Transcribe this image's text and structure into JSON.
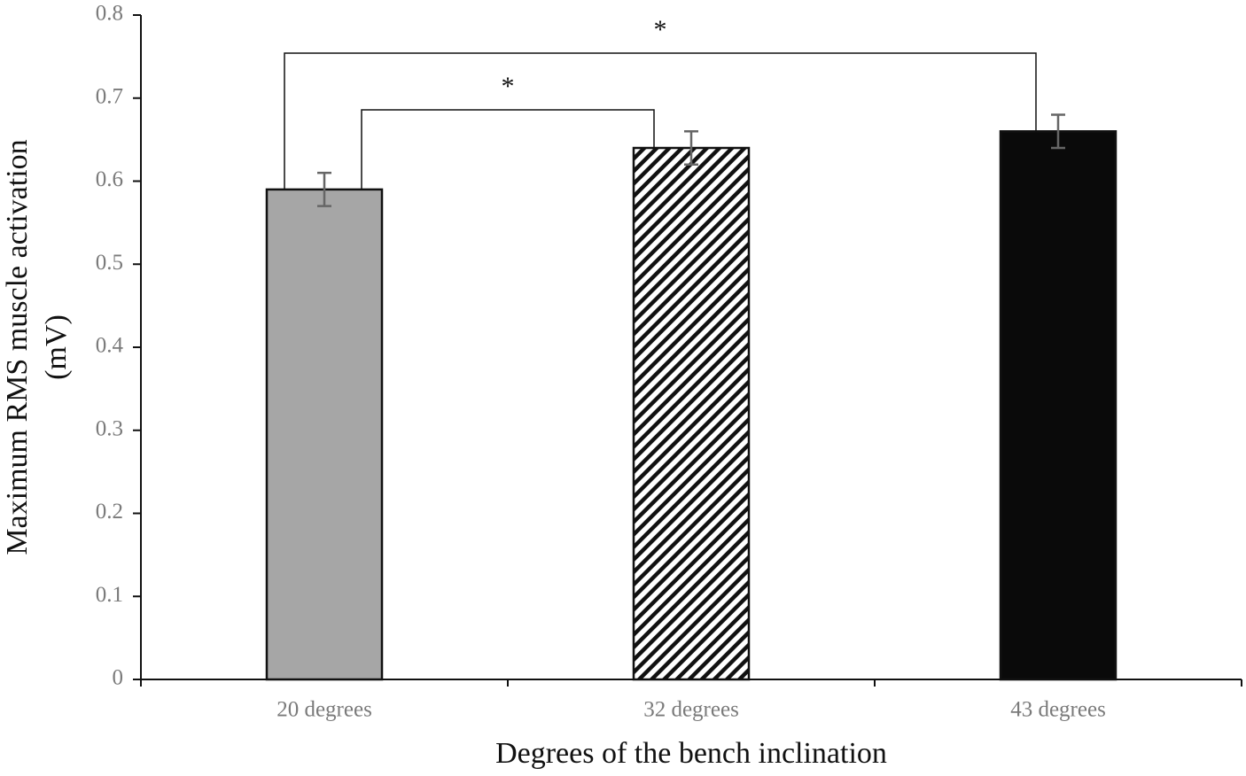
{
  "chart_data": {
    "type": "bar",
    "categories": [
      "20 degrees",
      "32 degrees",
      "43 degrees"
    ],
    "values": [
      0.59,
      0.64,
      0.66
    ],
    "errors": [
      0.02,
      0.02,
      0.02
    ],
    "colors": [
      "#a6a6a6",
      "#ffffff",
      "#0a0a0a"
    ],
    "patterns": [
      null,
      "diagonal-hatch",
      null
    ],
    "ylim": [
      0,
      0.8
    ],
    "yticks": [
      0,
      0.1,
      0.2,
      0.3,
      0.4,
      0.5,
      0.6,
      0.7,
      0.8
    ],
    "y_label": [
      "Maximum RMS muscle activation",
      "(mV)"
    ],
    "x_label": "Degrees of the bench inclination",
    "annotations": [
      "*",
      "*"
    ]
  }
}
